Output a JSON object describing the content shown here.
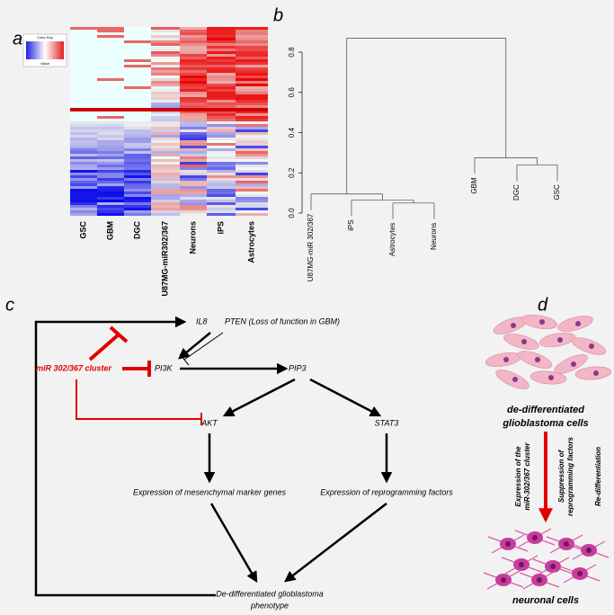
{
  "panel_a": {
    "label": "a",
    "color_key_title": "Color Key",
    "color_key_axis": "Value",
    "columns": [
      "GSC",
      "GBM",
      "DGC",
      "U87MG-miR302/367",
      "Neurons",
      "iPS",
      "Astrocytes"
    ]
  },
  "chart_data": {
    "type": "dendrogram",
    "panel_label": "b",
    "leaves": [
      "U87MG-miR 302/367",
      "iPS",
      "Astrocytes",
      "Neurons",
      "GBM",
      "DGC",
      "GSC"
    ],
    "merges": [
      {
        "members": [
          2,
          3
        ],
        "height": 0.05
      },
      {
        "members": [
          1,
          2,
          3
        ],
        "height": 0.065
      },
      {
        "members": [
          0,
          1,
          2,
          3
        ],
        "height": 0.095
      },
      {
        "members": [
          5,
          6
        ],
        "height": 0.24
      },
      {
        "members": [
          4,
          5,
          6
        ],
        "height": 0.275
      },
      {
        "members": [
          0,
          1,
          2,
          3,
          4,
          5,
          6
        ],
        "height": 0.87
      }
    ],
    "ylim": [
      0,
      0.8
    ],
    "yticks": [
      {
        "value": 0,
        "label": "0.0"
      },
      {
        "value": 0.2,
        "label": "0.2"
      },
      {
        "value": 0.4,
        "label": "0.4"
      },
      {
        "value": 0.6,
        "label": "0.6"
      },
      {
        "value": 0.8,
        "label": "0.8"
      }
    ]
  },
  "panel_c": {
    "label": "c",
    "il8": "IL8",
    "pten": "PTEN (Loss of function in GBM)",
    "mir": "miR 302/367 cluster",
    "pi3k": "PI3K",
    "pip3": "PIP3",
    "akt": "AKT",
    "stat3": "STAT3",
    "mes": "Expression of mesenchymal marker genes",
    "rep": "Expression of reprogramming factors",
    "dediff": [
      "De-differentiated glioblastoma",
      "phenotype"
    ]
  },
  "panel_d": {
    "label": "d",
    "top": [
      "de-differentiated",
      "glioblastoma cells"
    ],
    "arrow_texts": [
      [
        "Expression of the",
        "miR-302/367 cluster"
      ],
      [
        "Suppression of",
        "reprogramming factors"
      ],
      [
        "Re-differentiation"
      ]
    ],
    "bottom": "neuronal cells"
  }
}
